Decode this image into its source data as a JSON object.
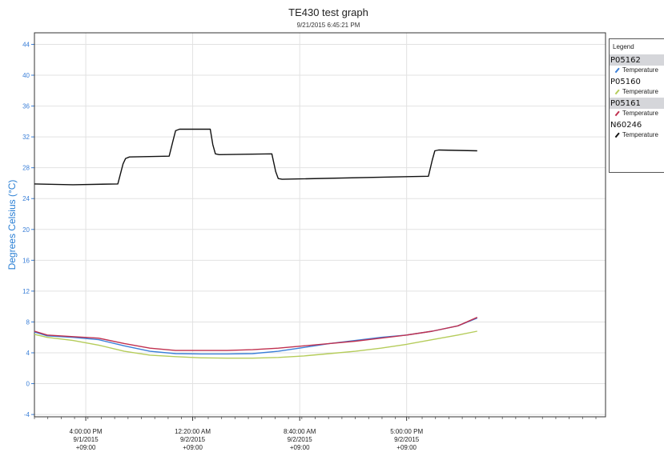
{
  "chart_data": {
    "type": "line",
    "title": "TE430 test graph",
    "subtitle": "9/21/2015 6:45:21 PM",
    "ylabel": "Degrees Celsius (°C)",
    "xlabel": "",
    "ylim": [
      -4.3,
      45.5
    ],
    "y_ticks": [
      -4,
      0,
      4,
      8,
      12,
      16,
      20,
      24,
      28,
      32,
      36,
      40,
      44
    ],
    "x_unit": "hours since 9/1/2015 12:00 PM",
    "xlim": [
      0,
      44.5
    ],
    "x_ticks": [
      {
        "x": 4,
        "lines": [
          "4:00:00 PM",
          "9/1/2015",
          "+09:00"
        ]
      },
      {
        "x": 12.33,
        "lines": [
          "12:20:00 AM",
          "9/2/2015",
          "+09:00"
        ]
      },
      {
        "x": 20.67,
        "lines": [
          "8:40:00 AM",
          "9/2/2015",
          "+09:00"
        ]
      },
      {
        "x": 29,
        "lines": [
          "5:00:00 PM",
          "9/2/2015",
          "+09:00"
        ]
      }
    ],
    "grid": true,
    "legend_position": "right",
    "legend_title": "Legend",
    "series": [
      {
        "name": "P05162",
        "label": "Temperature",
        "color": "#3a7fd8",
        "x": [
          0,
          1,
          3,
          5,
          7,
          9,
          11,
          13,
          15,
          17,
          19,
          21,
          23,
          25,
          27,
          29,
          31,
          33,
          34.5
        ],
        "y": [
          6.7,
          6.2,
          6.0,
          5.7,
          4.9,
          4.2,
          3.9,
          3.85,
          3.85,
          3.9,
          4.2,
          4.7,
          5.2,
          5.6,
          6.0,
          6.3,
          6.8,
          7.5,
          8.5
        ]
      },
      {
        "name": "P05160",
        "label": "Temperature",
        "color": "#b5cc5a",
        "x": [
          0,
          1,
          3,
          5,
          7,
          9,
          11,
          13,
          15,
          17,
          19,
          21,
          23,
          25,
          27,
          29,
          31,
          33,
          34.5
        ],
        "y": [
          6.4,
          6.0,
          5.6,
          5.0,
          4.2,
          3.7,
          3.5,
          3.35,
          3.3,
          3.3,
          3.4,
          3.6,
          3.9,
          4.2,
          4.6,
          5.1,
          5.7,
          6.3,
          6.8
        ]
      },
      {
        "name": "P05161",
        "label": "Temperature",
        "color": "#c0304f",
        "x": [
          0,
          1,
          3,
          5,
          7,
          9,
          11,
          13,
          15,
          17,
          19,
          21,
          23,
          25,
          27,
          29,
          31,
          33,
          34.5
        ],
        "y": [
          6.8,
          6.3,
          6.1,
          5.9,
          5.2,
          4.6,
          4.3,
          4.3,
          4.3,
          4.4,
          4.6,
          4.9,
          5.2,
          5.5,
          5.9,
          6.3,
          6.8,
          7.5,
          8.6
        ]
      },
      {
        "name": "N60246",
        "label": "Temperature",
        "color": "#111111",
        "x": [
          0,
          3,
          6.5,
          6.9,
          7.1,
          7.4,
          10.5,
          10.8,
          11.0,
          11.3,
          13.7,
          13.9,
          14.1,
          14.4,
          18.5,
          18.8,
          19.0,
          19.3,
          30.7,
          31.0,
          31.2,
          31.5,
          34.5
        ],
        "y": [
          25.9,
          25.8,
          25.9,
          28.5,
          29.2,
          29.4,
          29.5,
          31.5,
          32.8,
          33.0,
          33.0,
          31.0,
          29.8,
          29.7,
          29.8,
          27.5,
          26.6,
          26.5,
          26.9,
          29.0,
          30.2,
          30.3,
          30.2
        ]
      }
    ]
  }
}
